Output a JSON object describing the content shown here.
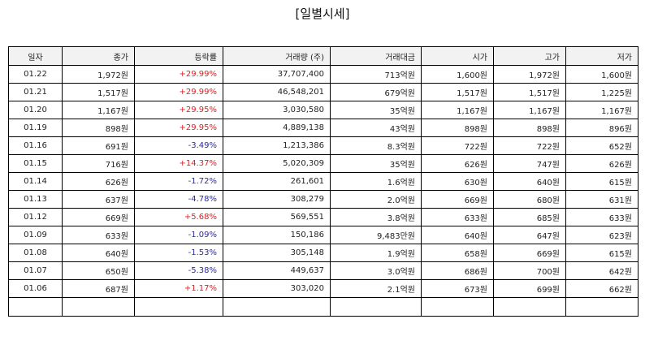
{
  "title": "[일별시세]",
  "headers": [
    "일자",
    "종가",
    "등락률",
    "거래량 (주)",
    "거래대금",
    "시가",
    "고가",
    "저가"
  ],
  "colors": {
    "up": "#e02020",
    "down": "#2a2aa8",
    "header_bg": "#f2f2f2"
  },
  "rows": [
    {
      "date": "01.22",
      "close": "1,972원",
      "change": "+29.99%",
      "direction": "up",
      "volume": "37,707,400",
      "amount": "713억원",
      "open": "1,600원",
      "high": "1,972원",
      "low": "1,600원"
    },
    {
      "date": "01.21",
      "close": "1,517원",
      "change": "+29.99%",
      "direction": "up",
      "volume": "46,548,201",
      "amount": "679억원",
      "open": "1,517원",
      "high": "1,517원",
      "low": "1,225원"
    },
    {
      "date": "01.20",
      "close": "1,167원",
      "change": "+29.95%",
      "direction": "up",
      "volume": "3,030,580",
      "amount": "35억원",
      "open": "1,167원",
      "high": "1,167원",
      "low": "1,167원"
    },
    {
      "date": "01.19",
      "close": "898원",
      "change": "+29.95%",
      "direction": "up",
      "volume": "4,889,138",
      "amount": "43억원",
      "open": "898원",
      "high": "898원",
      "low": "896원"
    },
    {
      "date": "01.16",
      "close": "691원",
      "change": "-3.49%",
      "direction": "down",
      "volume": "1,213,386",
      "amount": "8.3억원",
      "open": "722원",
      "high": "722원",
      "low": "652원"
    },
    {
      "date": "01.15",
      "close": "716원",
      "change": "+14.37%",
      "direction": "up",
      "volume": "5,020,309",
      "amount": "35억원",
      "open": "626원",
      "high": "747원",
      "low": "626원"
    },
    {
      "date": "01.14",
      "close": "626원",
      "change": "-1.72%",
      "direction": "down",
      "volume": "261,601",
      "amount": "1.6억원",
      "open": "630원",
      "high": "640원",
      "low": "615원"
    },
    {
      "date": "01.13",
      "close": "637원",
      "change": "-4.78%",
      "direction": "down",
      "volume": "308,279",
      "amount": "2.0억원",
      "open": "669원",
      "high": "680원",
      "low": "631원"
    },
    {
      "date": "01.12",
      "close": "669원",
      "change": "+5.68%",
      "direction": "up",
      "volume": "569,551",
      "amount": "3.8억원",
      "open": "633원",
      "high": "685원",
      "low": "633원"
    },
    {
      "date": "01.09",
      "close": "633원",
      "change": "-1.09%",
      "direction": "down",
      "volume": "150,186",
      "amount": "9,483만원",
      "open": "640원",
      "high": "647원",
      "low": "623원"
    },
    {
      "date": "01.08",
      "close": "640원",
      "change": "-1.53%",
      "direction": "down",
      "volume": "305,148",
      "amount": "1.9억원",
      "open": "658원",
      "high": "669원",
      "low": "615원"
    },
    {
      "date": "01.07",
      "close": "650원",
      "change": "-5.38%",
      "direction": "down",
      "volume": "449,637",
      "amount": "3.0억원",
      "open": "686원",
      "high": "700원",
      "low": "642원"
    },
    {
      "date": "01.06",
      "close": "687원",
      "change": "+1.17%",
      "direction": "up",
      "volume": "303,020",
      "amount": "2.1억원",
      "open": "673원",
      "high": "699원",
      "low": "662원"
    }
  ]
}
